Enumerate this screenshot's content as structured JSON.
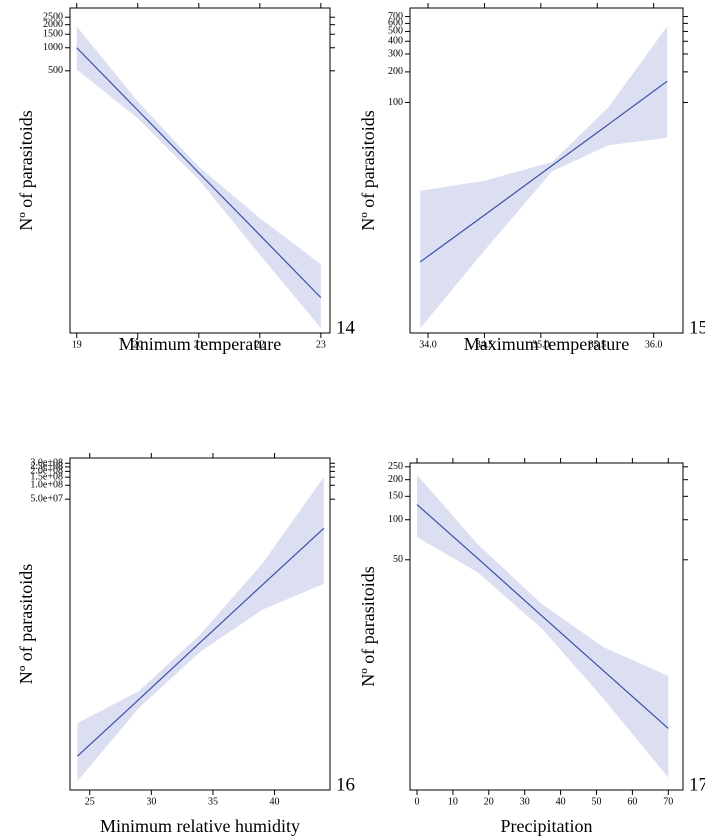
{
  "chart_data": [
    {
      "type": "line",
      "xlabel": "Minimum temperature",
      "ylabel": "Nº of parasitoids",
      "panel_label": "14",
      "log_y": true,
      "x": [
        19,
        20,
        21,
        22,
        23
      ],
      "values": [
        1000,
        153,
        23.4,
        3.6,
        0.55
      ],
      "upper": [
        1900,
        200,
        28,
        6,
        1.5
      ],
      "lower": [
        520,
        120,
        19,
        2.0,
        0.22
      ],
      "color": "#3a4fa8",
      "band_color": "#dcdff2",
      "xlim": [
        18.89,
        23.15
      ],
      "ylim": [
        0.19,
        3300
      ],
      "xticks": [
        19,
        20,
        21,
        22,
        23
      ],
      "yticks": [
        500,
        1000,
        1500,
        2000,
        2500
      ]
    },
    {
      "type": "line",
      "xlabel": "Maximum temperature",
      "ylabel": "Nº of parasitoids",
      "panel_label": "15",
      "log_y": true,
      "x": [
        33.93,
        34.5,
        35.1,
        35.6,
        36.12
      ],
      "values": [
        2.7,
        7.8,
        24,
        61,
        162
      ],
      "upper": [
        13.5,
        17,
        26,
        90,
        560
      ],
      "lower": [
        0.6,
        3.5,
        21,
        38,
        45
      ],
      "color": "#3a4fa8",
      "band_color": "#dcdff2",
      "xlim": [
        33.84,
        36.26
      ],
      "ylim": [
        0.54,
        850
      ],
      "xticks": [
        {
          "value": 34,
          "label": "34.0"
        },
        34.5,
        {
          "value": 35,
          "label": "35.0"
        },
        35.5,
        {
          "value": 36,
          "label": "36.0"
        }
      ],
      "yticks": [
        100,
        200,
        300,
        400,
        500,
        600,
        700
      ]
    },
    {
      "type": "line",
      "xlabel": "Minimum relative humidity",
      "ylabel": "Nº of parasitoids",
      "panel_label": "16",
      "log_y": true,
      "x": [
        24,
        29,
        34,
        39,
        44
      ],
      "values": [
        135,
        2300,
        40000,
        690000,
        11700000
      ],
      "upper": [
        700,
        3500,
        60000,
        2000000,
        150000000
      ],
      "lower": [
        39,
        1500,
        25000,
        200000,
        740000
      ],
      "color": "#3a4fa8",
      "band_color": "#dcdff2",
      "xlim": [
        23.4,
        44.5
      ],
      "ylim": [
        25,
        390000000
      ],
      "xticks": [
        25,
        30,
        35,
        40
      ],
      "yticks": [
        {
          "value": 50000000,
          "label": "5.0e+07"
        },
        {
          "value": 100000000,
          "label": "1.0e+08"
        },
        {
          "value": 150000000,
          "label": "1.5e+08"
        },
        {
          "value": 200000000,
          "label": "2.0e+08"
        },
        {
          "value": 250000000,
          "label": "2.5e+08"
        },
        {
          "value": 300000000,
          "label": "3.0e+08"
        }
      ]
    },
    {
      "type": "line",
      "xlabel": "Precipitation",
      "ylabel": "Nº of parasitoids",
      "panel_label": "17",
      "log_y": true,
      "x": [
        0,
        17,
        35,
        52,
        70
      ],
      "values": [
        130,
        51,
        18.7,
        7.3,
        2.7
      ],
      "upper": [
        218,
        65,
        23,
        11,
        6.7
      ],
      "lower": [
        74,
        40,
        15,
        4.5,
        1.15
      ],
      "color": "#3a4fa8",
      "band_color": "#dcdff2",
      "xlim": [
        -1.95,
        74.1
      ],
      "ylim": [
        0.93,
        267
      ],
      "xticks": [
        0,
        10,
        20,
        30,
        40,
        50,
        60,
        70
      ],
      "yticks": [
        50,
        100,
        150,
        200,
        250
      ]
    }
  ]
}
